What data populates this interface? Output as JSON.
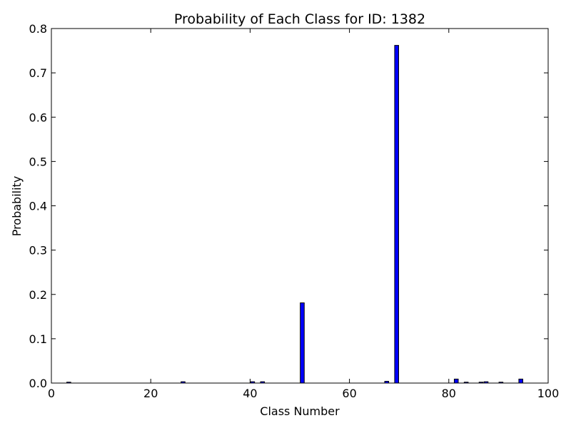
{
  "chart_data": {
    "type": "bar",
    "title": "Probability of Each Class for ID: 1382",
    "xlabel": "Class Number",
    "ylabel": "Probability",
    "xlim": [
      0,
      100
    ],
    "ylim": [
      0,
      0.8
    ],
    "xticks": [
      "0",
      "20",
      "40",
      "60",
      "80",
      "100"
    ],
    "yticks": [
      "0.0",
      "0.1",
      "0.2",
      "0.3",
      "0.4",
      "0.5",
      "0.6",
      "0.7",
      "0.8"
    ],
    "bar_color": "#0000ff",
    "x": [
      3,
      26,
      40,
      42,
      50,
      67,
      69,
      81,
      83,
      86,
      87,
      90,
      94
    ],
    "values": [
      0.002,
      0.003,
      0.003,
      0.003,
      0.181,
      0.004,
      0.762,
      0.009,
      0.002,
      0.002,
      0.003,
      0.002,
      0.009
    ],
    "grid": false,
    "legend": "none"
  }
}
